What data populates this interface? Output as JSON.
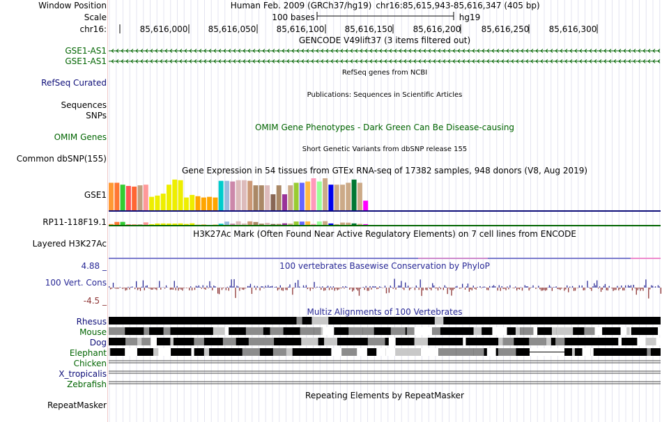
{
  "header": {
    "window_position_label": "Window Position",
    "assembly": "Human Feb. 2009 (GRCh37/hg19)",
    "position": "chr16:85,615,943-85,616,347 (405 bp)",
    "scale_label": "Scale",
    "scale_text": "100 bases",
    "db": "hg19",
    "chrom_label": "chr16:",
    "ruler_ticks": [
      "85,616,000",
      "85,616,050",
      "85,616,100",
      "85,616,150",
      "85,616,200",
      "85,616,250",
      "85,616,300"
    ]
  },
  "tracks": {
    "gencode": {
      "title": "GENCODE V49lift37 (3 items filtered out)",
      "items": [
        "GSE1-AS1",
        "GSE1-AS1"
      ],
      "color": "#006400"
    },
    "refseq": {
      "title": "RefSeq genes from NCBI",
      "label": "RefSeq Curated",
      "color": "#0c0c78"
    },
    "publications": {
      "title": "Publications: Sequences in Scientific Articles",
      "label": "Sequences"
    },
    "snps_label": "SNPs",
    "omim": {
      "title": "OMIM Gene Phenotypes - Dark Green Can Be Disease-causing",
      "label": "OMIM Genes",
      "color": "#006400"
    },
    "dbsnp": {
      "title": "Short Genetic Variants from dbSNP release 155",
      "label": "Common dbSNP(155)"
    },
    "gtex": {
      "title": "Gene Expression in 54 tissues from GTEx RNA-seq of 17382 samples, 948 donors (V8, Aug 2019)",
      "genes": [
        "GSE1",
        "RP11-118F19.1"
      ],
      "colors": [
        "#ff9933",
        "#ff7733",
        "#33cc33",
        "#ff5555",
        "#ff6633",
        "#c0a080",
        "#ff9999",
        "#eeee00",
        "#eeee00",
        "#eeee00",
        "#eeee00",
        "#eeee00",
        "#eeee00",
        "#eeee00",
        "#eeee00",
        "#ffa500",
        "#ffa500",
        "#ffa500",
        "#ffa500",
        "#00cccc",
        "#99bbdd",
        "#cc88aa",
        "#ddbbbb",
        "#ddbbbb",
        "#cc9977",
        "#aa8866",
        "#aa8866",
        "#ddbbbb",
        "#886655",
        "#aa8866",
        "#993399",
        "#ccaa88",
        "#99cc33",
        "#6666ff",
        "#ffbb44",
        "#ff99bb",
        "#99ff99",
        "#ccaa88",
        "#0000ee",
        "#ccaa88",
        "#ccaa88",
        "#ccaa88",
        "#007733",
        "#ccaa88",
        "#ff00ff"
      ],
      "heights": [
        0.86,
        0.86,
        0.8,
        0.76,
        0.74,
        0.78,
        0.8,
        0.42,
        0.46,
        0.52,
        0.8,
        0.96,
        0.94,
        0.4,
        0.48,
        0.44,
        0.4,
        0.42,
        0.4,
        0.92,
        0.92,
        0.9,
        0.94,
        0.94,
        0.92,
        0.78,
        0.78,
        0.78,
        0.5,
        0.78,
        0.5,
        0.78,
        0.86,
        0.86,
        0.9,
        1.0,
        0.9,
        1.0,
        0.8,
        0.8,
        0.8,
        0.86,
        0.96,
        0.86,
        0.3
      ]
    },
    "h3k27ac": {
      "title": "H3K27Ac Mark (Often Found Near Active Regulatory Elements) on 7 cell lines from ENCODE",
      "label": "Layered H3K27Ac"
    },
    "conservation": {
      "title": "100 vertebrates Basewise Conservation by PhyloP",
      "label": "100 Vert. Cons",
      "max_label": "4.88 _",
      "min_label": "-4.5 _",
      "range": [
        -4.5,
        4.88
      ],
      "pos_color": "#282896",
      "neg_color": "#8c3232"
    },
    "multiz": {
      "title": "Multiz Alignments of 100 Vertebrates",
      "species": [
        "Rhesus",
        "Mouse",
        "Dog",
        "Elephant",
        "Chicken",
        "X_tropicalis",
        "Zebrafish"
      ]
    },
    "repeatmasker": {
      "title": "Repeating Elements by RepeatMasker",
      "label": "RepeatMasker"
    }
  },
  "colors": {
    "blue_label": "#0c0c78",
    "green_label": "#006400",
    "grid_line": "#e4e4f0",
    "gutter": "#f0c8c8"
  }
}
